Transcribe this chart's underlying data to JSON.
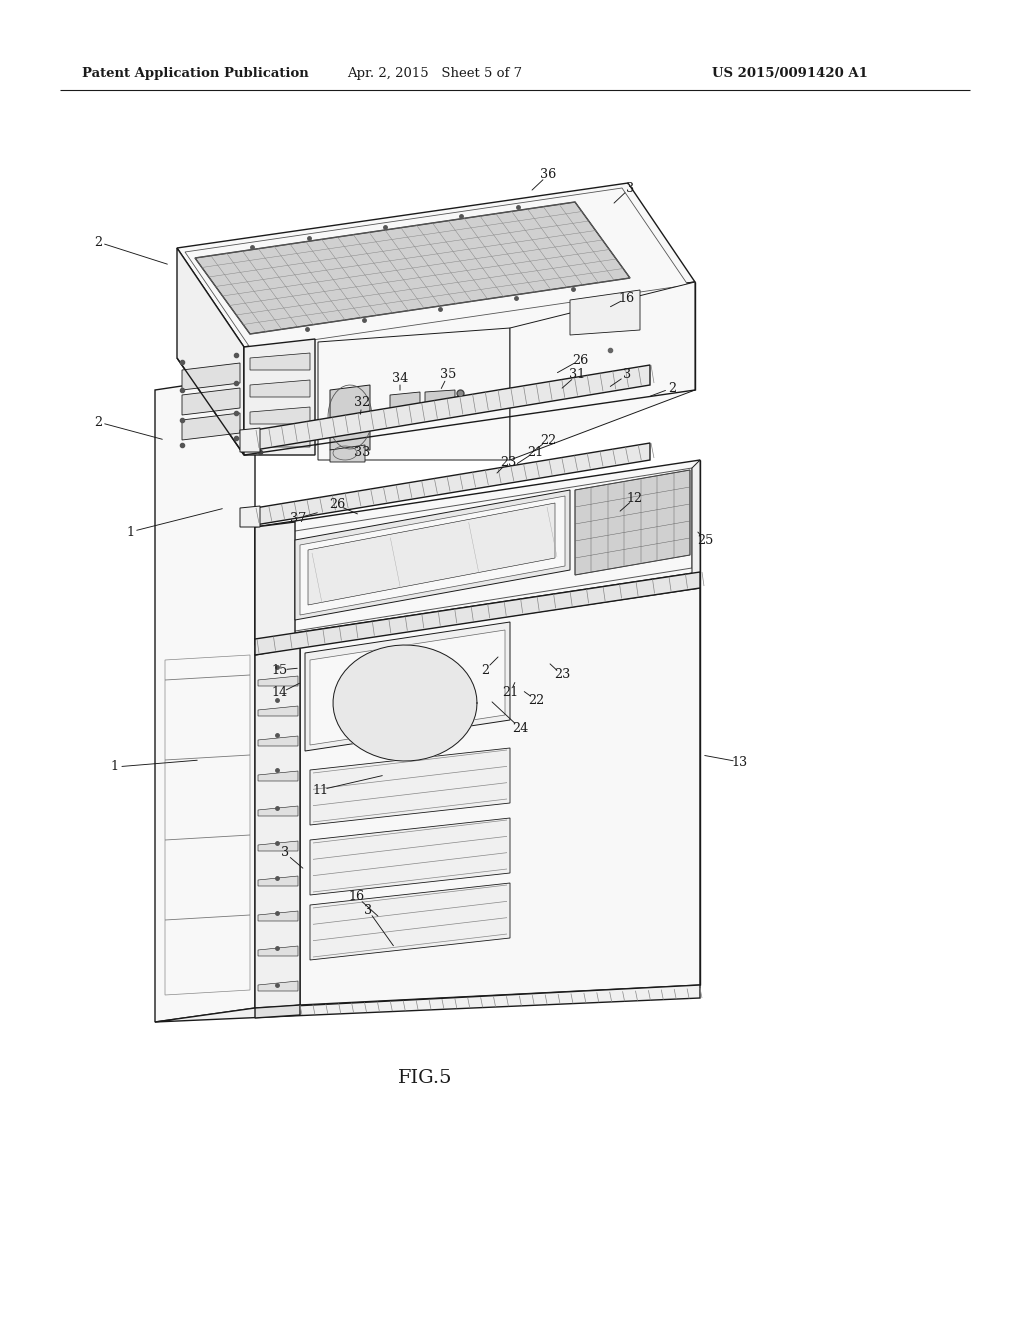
{
  "bg_color": "#ffffff",
  "lc": "#1a1a1a",
  "lw": 1.0,
  "header_left": "Patent Application Publication",
  "header_center": "Apr. 2, 2015   Sheet 5 of 7",
  "header_right": "US 2015/0091420 A1",
  "figure_label": "FIG.5",
  "fill_light": "#f8f8f8",
  "fill_mid": "#f0f0f0",
  "fill_dark": "#e0e0e0",
  "fill_mesh": "#d0d0d0"
}
